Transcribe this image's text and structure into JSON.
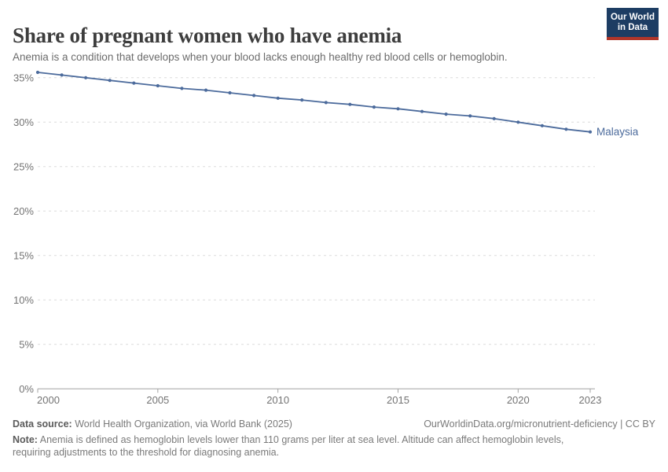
{
  "header": {
    "title": "Share of pregnant women who have anemia",
    "subtitle": "Anemia is a condition that develops when your blood lacks enough healthy red blood cells or hemoglobin.",
    "logo": {
      "line1": "Our World",
      "line2": "in Data"
    }
  },
  "chart_data": {
    "type": "line",
    "title": "Share of pregnant women who have anemia",
    "xlabel": "",
    "ylabel": "",
    "xlim": [
      2000,
      2023
    ],
    "ylim": [
      0,
      36
    ],
    "x_ticks": [
      2000,
      2005,
      2010,
      2015,
      2020,
      2023
    ],
    "y_ticks": [
      0,
      5,
      10,
      15,
      20,
      25,
      30,
      35
    ],
    "y_tick_suffix": "%",
    "grid": "horizontal-dashed",
    "legend_position": "end-of-line",
    "series": [
      {
        "name": "Malaysia",
        "color": "#4c6b9c",
        "x": [
          2000,
          2001,
          2002,
          2003,
          2004,
          2005,
          2006,
          2007,
          2008,
          2009,
          2010,
          2011,
          2012,
          2013,
          2014,
          2015,
          2016,
          2017,
          2018,
          2019,
          2020,
          2021,
          2022,
          2023
        ],
        "values": [
          35.6,
          35.3,
          35.0,
          34.7,
          34.4,
          34.1,
          33.8,
          33.6,
          33.3,
          33.0,
          32.7,
          32.5,
          32.2,
          32.0,
          31.7,
          31.5,
          31.2,
          30.9,
          30.7,
          30.4,
          30.0,
          29.6,
          29.2,
          28.9
        ]
      }
    ]
  },
  "footer": {
    "datasource_label": "Data source:",
    "datasource_text": " World Health Organization, via World Bank (2025)",
    "link": "OurWorldinData.org/micronutrient-deficiency | CC BY",
    "note_label": "Note:",
    "note_text": " Anemia is defined as hemoglobin levels lower than 110 grams per liter at sea level. Altitude can affect hemoglobin levels, requiring adjustments to the threshold for diagnosing anemia."
  },
  "colors": {
    "line": "#4c6b9c",
    "logo_bg": "#1d3d63",
    "logo_stripe": "#b13629",
    "grid": "#dcdcdc",
    "axis": "#a3a3a3",
    "tick_label": "#737373",
    "title": "#3d3d3d",
    "subtitle": "#6b6b6b"
  }
}
